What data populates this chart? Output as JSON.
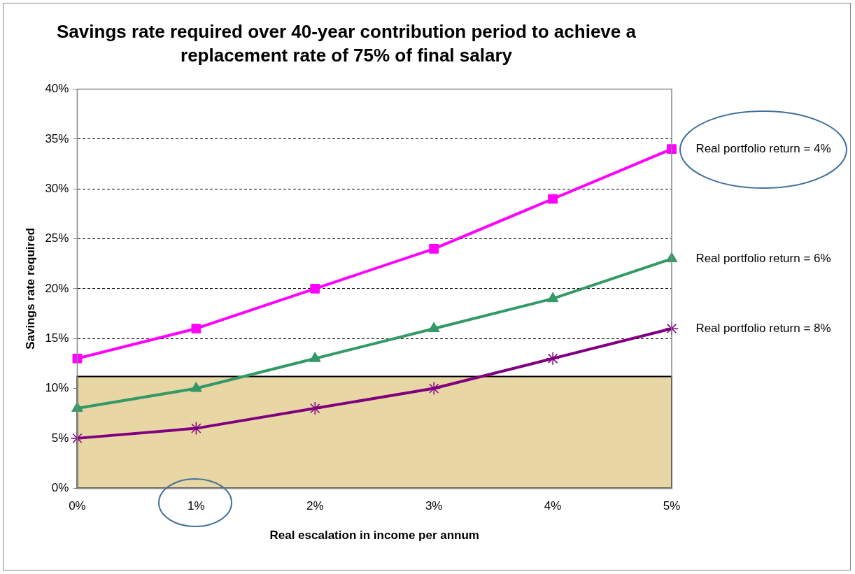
{
  "chart_data": {
    "type": "line",
    "title": "Savings rate required over 40-year contribution period to achieve a replacement rate of 75% of final salary",
    "xlabel": "Real escalation in income per annum",
    "ylabel": "Savings rate required",
    "categories": [
      "0%",
      "1%",
      "2%",
      "3%",
      "4%",
      "5%"
    ],
    "series": [
      {
        "name": "Real portfolio return = 4%",
        "color": "#ff00ff",
        "marker": "square",
        "values": [
          13,
          16,
          20,
          24,
          29,
          34
        ]
      },
      {
        "name": "Real portfolio return = 6%",
        "color": "#339966",
        "marker": "triangle",
        "values": [
          8,
          10,
          13,
          16,
          19,
          23
        ]
      },
      {
        "name": "Real portfolio return = 8%",
        "color": "#800080",
        "marker": "cross",
        "values": [
          5,
          6,
          8,
          10,
          13,
          16
        ]
      }
    ],
    "ylim": [
      0,
      40
    ],
    "yticks": [
      {
        "value": 0,
        "label": "0%"
      },
      {
        "value": 5,
        "label": "5%"
      },
      {
        "value": 10,
        "label": "10%"
      },
      {
        "value": 15,
        "label": "15%"
      },
      {
        "value": 20,
        "label": "20%"
      },
      {
        "value": 25,
        "label": "25%"
      },
      {
        "value": 30,
        "label": "30%"
      },
      {
        "value": 35,
        "label": "35%"
      },
      {
        "value": 40,
        "label": "40%"
      }
    ],
    "bands": [
      {
        "axis": "y",
        "from": 0,
        "to": 11.2,
        "color": "#e8d6a4"
      }
    ],
    "grid": "y",
    "legend": false
  }
}
